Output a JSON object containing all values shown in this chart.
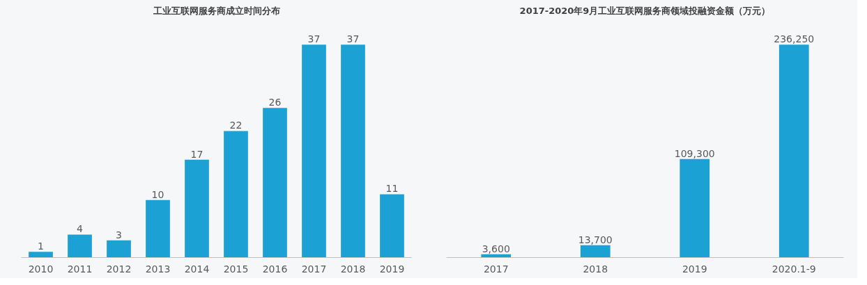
{
  "chart_data": [
    {
      "type": "bar",
      "title": "工业互联网服务商成立时间分布",
      "categories": [
        "2010",
        "2011",
        "2012",
        "2013",
        "2014",
        "2015",
        "2016",
        "2017",
        "2018",
        "2019"
      ],
      "values": [
        1,
        4,
        3,
        10,
        17,
        22,
        26,
        37,
        37,
        11
      ],
      "color": "#1ba1d4",
      "data_labels": true,
      "grid": false
    },
    {
      "type": "bar",
      "title": "2017-2020年9月工业互联网服务商领域投融资金额（万元）",
      "categories": [
        "2017",
        "2018",
        "2019",
        "2020.1-9"
      ],
      "values": [
        3600,
        13700,
        109300,
        236250
      ],
      "value_labels": [
        "3,600",
        "13,700",
        "109,300",
        "236,250"
      ],
      "color": "#1ba1d4",
      "grid": false
    }
  ]
}
